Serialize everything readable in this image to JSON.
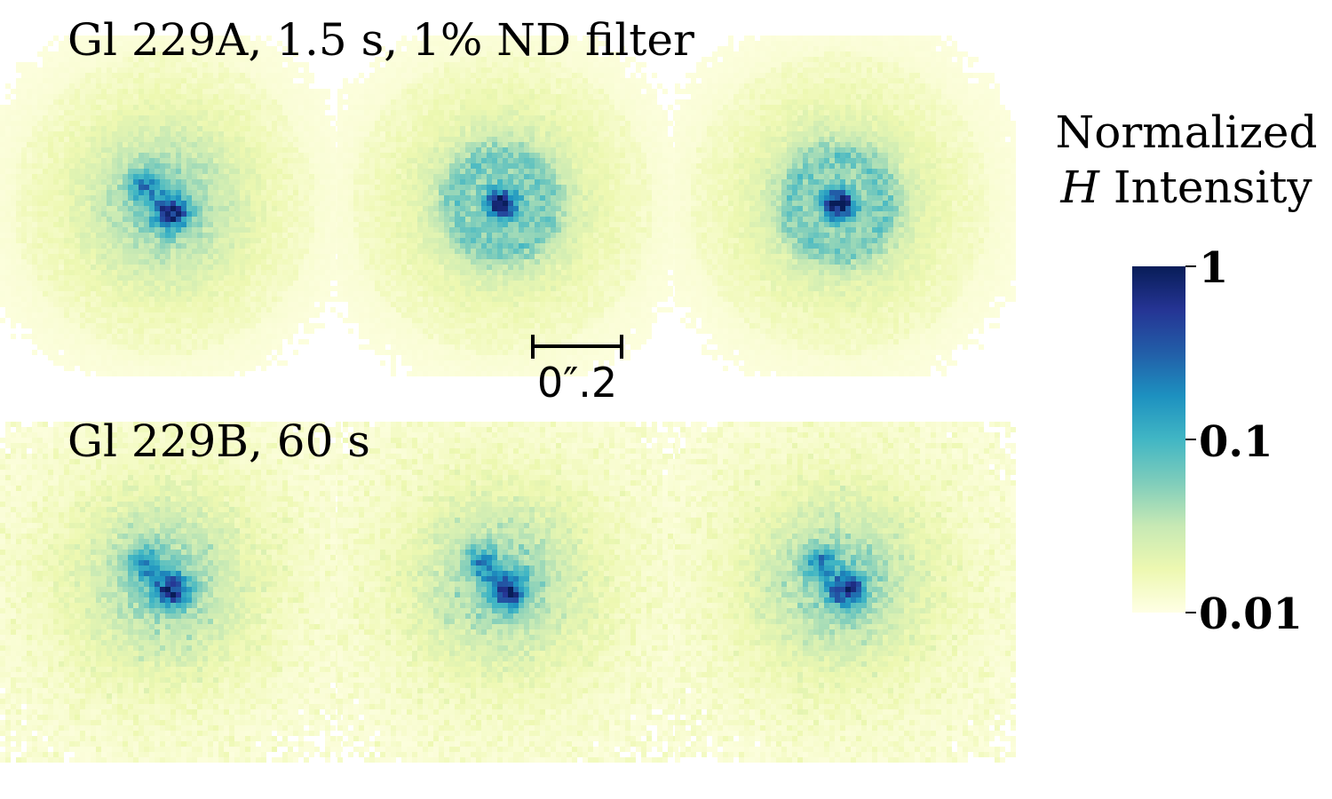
{
  "rows": [
    {
      "title": "Gl 229A, 1.5 s, 1% ND filter",
      "panels": [
        {
          "core": "double",
          "halo": "bright",
          "background": "faint"
        },
        {
          "core": "single",
          "halo": "ring",
          "background": "faint"
        },
        {
          "core": "single",
          "halo": "ring",
          "background": "faint"
        }
      ]
    },
    {
      "title": "Gl 229B, 60 s",
      "panels": [
        {
          "core": "double",
          "halo": "compact",
          "background": "noisy"
        },
        {
          "core": "double",
          "halo": "compact",
          "background": "noisy"
        },
        {
          "core": "double",
          "halo": "compact",
          "background": "noisy"
        }
      ]
    }
  ],
  "scale_bar": {
    "label": "0″.2"
  },
  "colorbar": {
    "title_line1": "Normalized",
    "title_var": "H",
    "title_rest": " Intensity",
    "scale": "log",
    "range": [
      0.01,
      1
    ],
    "ticks": [
      "1",
      "0.1",
      "0.01"
    ],
    "colormap": "YlGnBu",
    "colors": [
      "#ffffe5",
      "#edf8b1",
      "#c7e9b4",
      "#7fcdbb",
      "#41b6c4",
      "#1d91c0",
      "#225ea8",
      "#253494",
      "#081d58"
    ]
  }
}
